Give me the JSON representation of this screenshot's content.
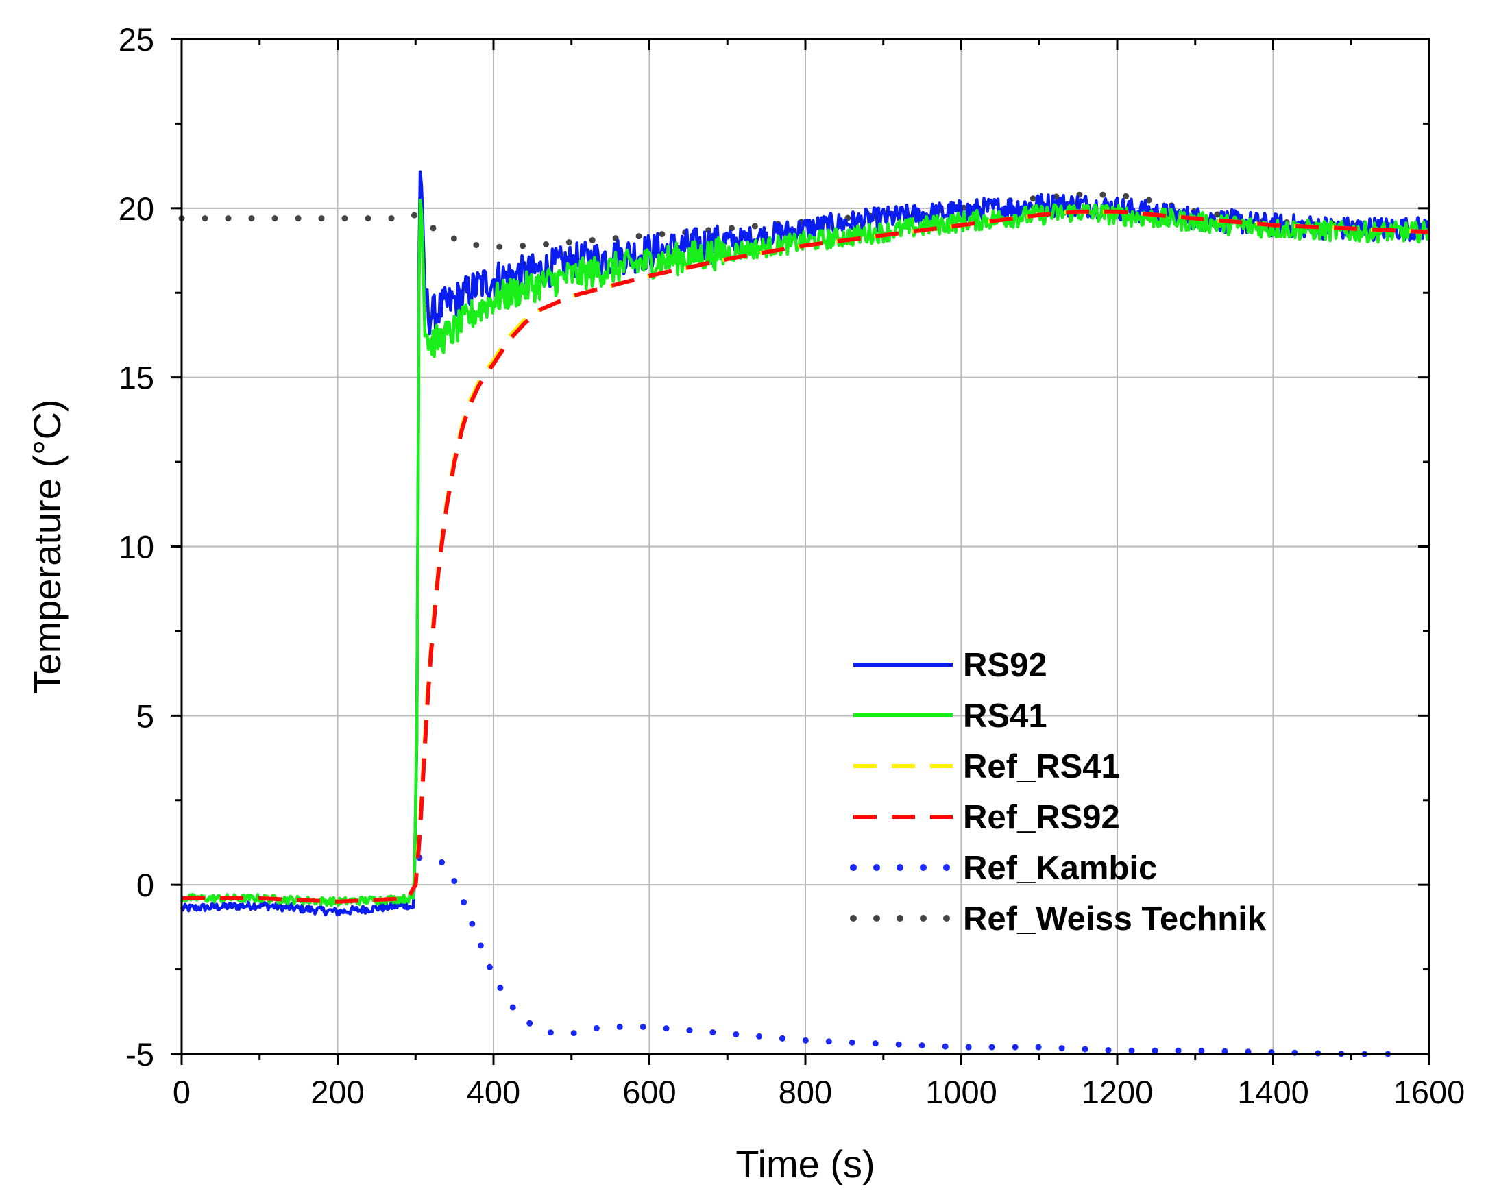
{
  "chart_data": {
    "type": "line",
    "title": "",
    "xlabel": "Time (s)",
    "ylabel": "Temperature (°C)",
    "xlim": [
      0,
      1600
    ],
    "ylim": [
      -5,
      25
    ],
    "x_ticks": [
      0,
      200,
      400,
      600,
      800,
      1000,
      1200,
      1400,
      1600
    ],
    "y_ticks": [
      -5,
      0,
      5,
      10,
      15,
      20,
      25
    ],
    "x_tick_labels": [
      "0",
      "200",
      "400",
      "600",
      "800",
      "1000",
      "1200",
      "1400",
      "1600"
    ],
    "y_tick_labels": [
      "-5",
      "0",
      "5",
      "10",
      "15",
      "20",
      "25"
    ],
    "grid": true,
    "legend_position": "lower-right",
    "series": [
      {
        "name": "RS92",
        "color": "#0a1df0",
        "style": "solid",
        "noise": 0.35,
        "x": [
          0,
          100,
          200,
          290,
          298,
          302,
          305,
          308,
          312,
          318,
          330,
          345,
          360,
          380,
          400,
          450,
          500,
          600,
          700,
          800,
          900,
          1000,
          1050,
          1100,
          1150,
          1200,
          1300,
          1400,
          1500,
          1600
        ],
        "y": [
          -0.7,
          -0.6,
          -0.8,
          -0.6,
          -0.7,
          5,
          21.3,
          20.6,
          17.5,
          16.8,
          17.0,
          17.2,
          17.4,
          17.7,
          17.9,
          18.1,
          18.4,
          18.7,
          19.0,
          19.4,
          19.7,
          19.9,
          20.0,
          20.1,
          20.1,
          20.0,
          19.7,
          19.5,
          19.4,
          19.4
        ]
      },
      {
        "name": "RS41",
        "color": "#19ee19",
        "style": "solid",
        "noise": 0.3,
        "x": [
          0,
          100,
          200,
          290,
          298,
          302,
          305,
          308,
          312,
          318,
          330,
          345,
          360,
          380,
          400,
          450,
          500,
          600,
          700,
          800,
          900,
          1000,
          1050,
          1100,
          1150,
          1200,
          1300,
          1400,
          1500,
          1600
        ],
        "y": [
          -0.4,
          -0.4,
          -0.5,
          -0.4,
          -0.4,
          5,
          20.5,
          19.8,
          16.5,
          16.0,
          16.1,
          16.3,
          16.6,
          17.0,
          17.3,
          17.7,
          18.0,
          18.4,
          18.7,
          19.0,
          19.3,
          19.6,
          19.7,
          19.8,
          19.9,
          19.8,
          19.6,
          19.4,
          19.3,
          19.3
        ]
      },
      {
        "name": "Ref_RS41",
        "color": "#ffee00",
        "style": "dashed",
        "x": [
          0,
          100,
          200,
          290,
          300,
          305,
          310,
          315,
          320,
          330,
          340,
          350,
          360,
          370,
          380,
          390,
          400,
          420,
          440,
          460,
          500,
          600,
          700,
          800,
          900,
          1000,
          1100,
          1150,
          1200,
          1300,
          1400,
          1500,
          1600
        ],
        "y": [
          -0.4,
          -0.4,
          -0.5,
          -0.4,
          0.0,
          1.5,
          3.5,
          5.5,
          7.0,
          9.5,
          11.3,
          12.6,
          13.6,
          14.3,
          14.8,
          15.2,
          15.5,
          16.2,
          16.7,
          17.0,
          17.4,
          18.0,
          18.5,
          18.9,
          19.2,
          19.5,
          19.8,
          19.9,
          19.9,
          19.7,
          19.5,
          19.4,
          19.3
        ]
      },
      {
        "name": "Ref_RS92",
        "color": "#ff0a0a",
        "style": "dashed",
        "x": [
          0,
          100,
          200,
          290,
          300,
          305,
          310,
          315,
          320,
          330,
          340,
          350,
          360,
          370,
          380,
          390,
          400,
          420,
          440,
          460,
          500,
          600,
          700,
          800,
          900,
          1000,
          1100,
          1150,
          1200,
          1300,
          1400,
          1500,
          1600
        ],
        "y": [
          -0.4,
          -0.4,
          -0.5,
          -0.4,
          0.0,
          1.3,
          3.3,
          5.3,
          6.9,
          9.4,
          11.2,
          12.5,
          13.5,
          14.2,
          14.7,
          15.1,
          15.4,
          16.1,
          16.6,
          17.0,
          17.4,
          18.0,
          18.5,
          18.9,
          19.2,
          19.5,
          19.8,
          19.9,
          19.9,
          19.7,
          19.5,
          19.4,
          19.3
        ]
      },
      {
        "name": "Ref_Kambic",
        "color": "#1a28f5",
        "style": "dotted",
        "x": [
          305,
          320,
          340,
          360,
          380,
          400,
          420,
          440,
          460,
          480,
          500,
          520,
          540,
          560,
          580,
          600,
          650,
          700,
          750,
          800,
          900,
          1000,
          1100,
          1200,
          1300,
          1400,
          1500,
          1560
        ],
        "y": [
          0.8,
          0.8,
          0.6,
          -0.4,
          -1.6,
          -2.7,
          -3.5,
          -4.0,
          -4.3,
          -4.4,
          -4.4,
          -4.3,
          -4.2,
          -4.2,
          -4.2,
          -4.2,
          -4.3,
          -4.4,
          -4.5,
          -4.6,
          -4.7,
          -4.8,
          -4.8,
          -4.9,
          -4.9,
          -4.95,
          -5.0,
          -5.0
        ]
      },
      {
        "name": "Ref_Weiss Technik",
        "color": "#444444",
        "style": "dotted",
        "x": [
          0,
          100,
          200,
          280,
          300,
          310,
          330,
          360,
          380,
          400,
          450,
          500,
          600,
          700,
          800,
          900,
          1000,
          1050,
          1100,
          1150,
          1200,
          1250,
          1300,
          1400,
          1500,
          1560
        ],
        "y": [
          19.7,
          19.7,
          19.7,
          19.7,
          19.8,
          19.6,
          19.3,
          19.0,
          18.9,
          18.85,
          18.9,
          19.0,
          19.2,
          19.4,
          19.6,
          19.8,
          20.0,
          20.2,
          20.3,
          20.4,
          20.4,
          20.2,
          19.9,
          19.6,
          19.5,
          19.5
        ]
      }
    ]
  }
}
